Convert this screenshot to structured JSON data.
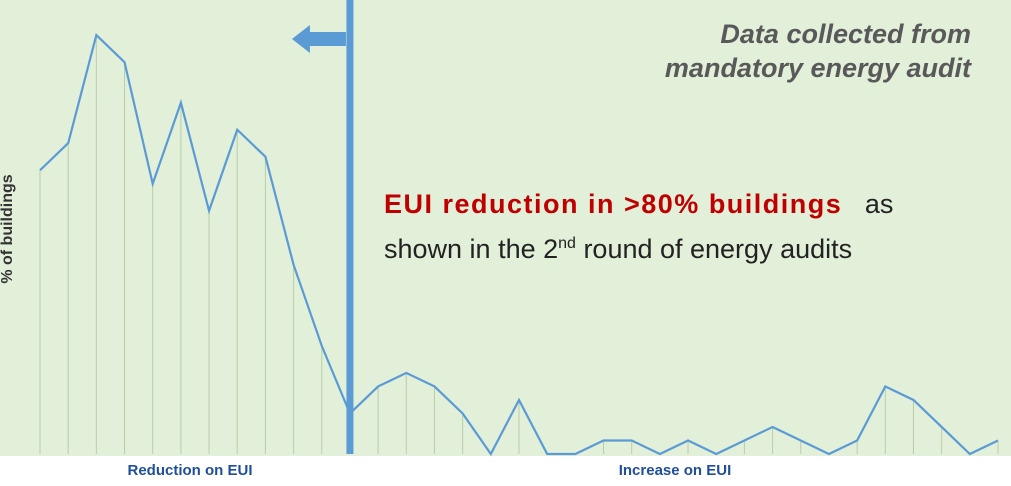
{
  "chart_data": {
    "type": "line",
    "y_label": "% of buildings",
    "x_labels": [
      "Reduction on EUI",
      "Increase on EUI"
    ],
    "note": [
      "Data collected from",
      "mandatory energy audit"
    ],
    "highlight": {
      "bold": "EUI reduction in >80% buildings",
      "after": "as",
      "line2_start": "shown in the 2",
      "superscript": "nd",
      "line2_end": "round of energy audits"
    },
    "values": [
      21,
      23,
      31,
      29,
      20,
      26,
      18,
      24,
      22,
      14,
      8,
      3,
      5,
      6,
      5,
      3,
      0,
      4,
      0,
      0,
      1,
      1,
      0,
      1,
      0,
      1,
      2,
      1,
      0,
      1,
      5,
      4,
      2,
      0,
      1
    ],
    "color": "#5b9bd5",
    "ylim": [
      0,
      33.6
    ],
    "divider_index": 11
  }
}
